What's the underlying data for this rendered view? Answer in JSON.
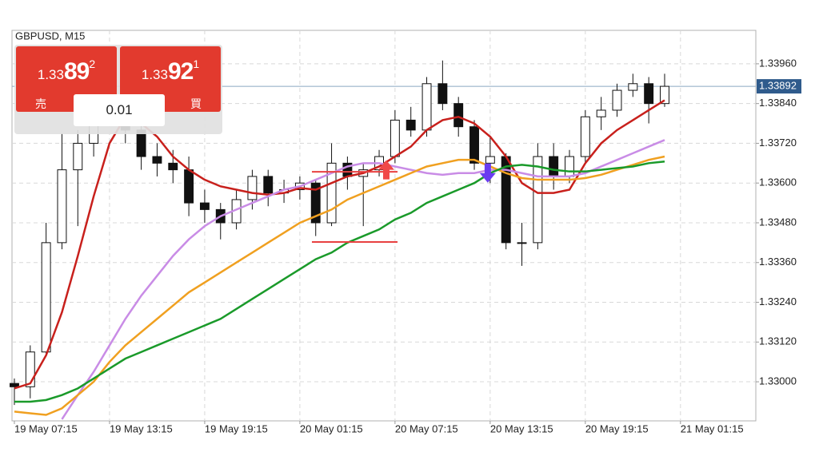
{
  "chart_data": {
    "type": "candlestick",
    "title": "GBPUSD, M15",
    "xlim": [
      -0.15,
      46.75
    ],
    "xticks": [
      {
        "value": 0,
        "label": "19 May 07:15"
      },
      {
        "value": 6,
        "label": "19 May 13:15"
      },
      {
        "value": 12,
        "label": "19 May 19:15"
      },
      {
        "value": 18,
        "label": "20 May 01:15"
      },
      {
        "value": 24,
        "label": "20 May 07:15"
      },
      {
        "value": 30,
        "label": "20 May 13:15"
      },
      {
        "value": 36,
        "label": "20 May 19:15"
      },
      {
        "value": 42,
        "label": "21 May 01:15"
      }
    ],
    "ylim": [
      1.32882,
      1.34061
    ],
    "yticks": [
      {
        "value": 1.33,
        "label": "1.33000"
      },
      {
        "value": 1.3312,
        "label": "1.33120"
      },
      {
        "value": 1.3324,
        "label": "1.33240"
      },
      {
        "value": 1.3336,
        "label": "1.33360"
      },
      {
        "value": 1.3348,
        "label": "1.33480"
      },
      {
        "value": 1.336,
        "label": "1.33600"
      },
      {
        "value": 1.3372,
        "label": "1.33720"
      },
      {
        "value": 1.3384,
        "label": "1.33840"
      },
      {
        "value": 1.3396,
        "label": "1.33960"
      }
    ],
    "grid": true,
    "last_price": 1.33892,
    "candles": {
      "open": [
        1.32995,
        1.32985,
        1.3309,
        1.3342,
        1.3364,
        1.3372,
        1.3388,
        1.339,
        1.3376,
        1.3368,
        1.3366,
        1.3364,
        1.3354,
        1.3352,
        1.3348,
        1.3355,
        1.3362,
        1.3357,
        1.3358,
        1.336,
        1.3348,
        1.3366,
        1.3362,
        1.3364,
        1.3368,
        1.3379,
        1.3376,
        1.339,
        1.3384,
        1.3377,
        1.3366,
        1.3368,
        1.3342,
        1.3342,
        1.3368,
        1.3362,
        1.3368,
        1.338,
        1.3382,
        1.3388,
        1.339,
        1.3384
      ],
      "high": [
        1.3301,
        1.3311,
        1.3348,
        1.3375,
        1.3376,
        1.3395,
        1.34,
        1.3393,
        1.3378,
        1.3372,
        1.337,
        1.3368,
        1.3358,
        1.3354,
        1.3358,
        1.3364,
        1.3364,
        1.3361,
        1.3362,
        1.3361,
        1.3372,
        1.3368,
        1.3366,
        1.337,
        1.3382,
        1.3383,
        1.3392,
        1.3397,
        1.3386,
        1.3379,
        1.3374,
        1.3369,
        1.3348,
        1.3372,
        1.3372,
        1.337,
        1.3382,
        1.3386,
        1.339,
        1.3393,
        1.3392,
        1.3393
      ],
      "low": [
        1.3293,
        1.3295,
        1.3308,
        1.334,
        1.3347,
        1.3368,
        1.3382,
        1.3372,
        1.3364,
        1.3362,
        1.336,
        1.335,
        1.3348,
        1.3343,
        1.3346,
        1.3352,
        1.3353,
        1.3354,
        1.3355,
        1.3344,
        1.3347,
        1.3358,
        1.3347,
        1.3362,
        1.3366,
        1.3374,
        1.3374,
        1.3382,
        1.3374,
        1.3364,
        1.336,
        1.334,
        1.3335,
        1.334,
        1.3358,
        1.336,
        1.3366,
        1.3376,
        1.338,
        1.3386,
        1.3378,
        1.3383
      ],
      "close": [
        1.32985,
        1.3309,
        1.3342,
        1.3364,
        1.3372,
        1.3388,
        1.339,
        1.3376,
        1.3368,
        1.3366,
        1.3364,
        1.3354,
        1.3352,
        1.3348,
        1.3355,
        1.3362,
        1.3357,
        1.3358,
        1.336,
        1.3348,
        1.3366,
        1.3362,
        1.3364,
        1.3368,
        1.3379,
        1.3376,
        1.339,
        1.3384,
        1.3377,
        1.3366,
        1.3368,
        1.3342,
        1.3342,
        1.3368,
        1.3362,
        1.3368,
        1.338,
        1.3382,
        1.3388,
        1.339,
        1.3384,
        1.33892
      ]
    },
    "series": [
      {
        "color": "#c8201c",
        "values": [
          1.3298,
          1.32995,
          1.3308,
          1.3321,
          1.3338,
          1.3356,
          1.3372,
          1.338,
          1.3378,
          1.3374,
          1.3368,
          1.3364,
          1.3361,
          1.3359,
          1.3358,
          1.3357,
          1.33565,
          1.3357,
          1.33585,
          1.3358,
          1.336,
          1.3362,
          1.3363,
          1.3365,
          1.3368,
          1.3371,
          1.3376,
          1.3379,
          1.338,
          1.3378,
          1.3374,
          1.3368,
          1.336,
          1.3357,
          1.3357,
          1.3358,
          1.3366,
          1.3372,
          1.3376,
          1.3379,
          1.3382,
          1.3385
        ]
      },
      {
        "color": "#c98ce6",
        "values": [
          null,
          null,
          null,
          1.32887,
          1.3296,
          1.3303,
          1.3311,
          1.3319,
          1.3326,
          1.3332,
          1.3338,
          1.3343,
          1.3347,
          1.335,
          1.3352,
          1.3354,
          1.3356,
          1.3358,
          1.3359,
          1.3361,
          1.3363,
          1.3365,
          1.3366,
          1.3366,
          1.3365,
          1.3364,
          1.3363,
          1.33625,
          1.3363,
          1.3363,
          1.3364,
          1.3364,
          1.3363,
          1.3362,
          1.3362,
          1.3362,
          1.3363,
          1.3365,
          1.3367,
          1.3369,
          1.3371,
          1.3373
        ]
      },
      {
        "color": "#f0a020",
        "values": [
          1.3291,
          1.32905,
          1.329,
          1.3292,
          1.3296,
          1.33,
          1.3306,
          1.3311,
          1.3315,
          1.3319,
          1.3323,
          1.3327,
          1.333,
          1.3333,
          1.3336,
          1.3339,
          1.3342,
          1.3345,
          1.3348,
          1.335,
          1.3352,
          1.3355,
          1.3357,
          1.3359,
          1.3361,
          1.3363,
          1.3365,
          1.3366,
          1.3367,
          1.3367,
          1.3365,
          1.3363,
          1.33615,
          1.3361,
          1.3361,
          1.3361,
          1.33615,
          1.33625,
          1.3364,
          1.33655,
          1.3367,
          1.3368
        ]
      },
      {
        "color": "#1a9a2a",
        "values": [
          1.3294,
          1.3294,
          1.32945,
          1.3296,
          1.3298,
          1.3301,
          1.3304,
          1.3307,
          1.3309,
          1.3311,
          1.3313,
          1.3315,
          1.3317,
          1.3319,
          1.3322,
          1.3325,
          1.3328,
          1.3331,
          1.3334,
          1.3337,
          1.3339,
          1.3342,
          1.3344,
          1.3346,
          1.3349,
          1.3351,
          1.3354,
          1.3356,
          1.3358,
          1.336,
          1.3363,
          1.3365,
          1.33655,
          1.3365,
          1.3364,
          1.33635,
          1.33635,
          1.3364,
          1.33645,
          1.3365,
          1.3366,
          1.33665
        ]
      }
    ],
    "levels": [
      {
        "value": 1.33634,
        "x": [
          18.76,
          24.16
        ],
        "color": "#e84040"
      },
      {
        "value": 1.33422,
        "x": [
          18.76,
          24.16
        ],
        "color": "#e84040"
      }
    ],
    "markers": [
      {
        "direction": "up",
        "x": 23.45,
        "y": 1.3364,
        "color": "#f04848"
      },
      {
        "direction": "down",
        "x": 29.85,
        "y": 1.3363,
        "color": "#6a3cf0"
      }
    ]
  },
  "trade_panel": {
    "sell": {
      "prefix": "1.33",
      "big": "89",
      "sup": "2",
      "label": "売"
    },
    "buy": {
      "prefix": "1.33",
      "big": "92",
      "sup": "1",
      "label": "買"
    },
    "lot": "0.01"
  }
}
